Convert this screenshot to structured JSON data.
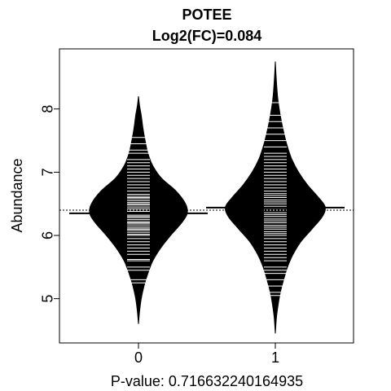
{
  "chart_data": {
    "type": "beanplot",
    "title": "POTEE",
    "subtitle": "Log2(FC)=0.084",
    "xlabel": "P-value: 0.716632240164935",
    "ylabel": "Abundance",
    "categories": [
      "0",
      "1"
    ],
    "y_ticks": [
      5,
      6,
      7,
      8
    ],
    "ylim": [
      4.3,
      8.95
    ],
    "overall_mean": 6.4,
    "groups": [
      {
        "name": "0",
        "mean": 6.35,
        "min": 4.6,
        "max": 8.2,
        "density": [
          [
            4.6,
            0.0
          ],
          [
            4.8,
            0.02
          ],
          [
            5.0,
            0.05
          ],
          [
            5.2,
            0.1
          ],
          [
            5.4,
            0.17
          ],
          [
            5.6,
            0.26
          ],
          [
            5.8,
            0.4
          ],
          [
            6.0,
            0.58
          ],
          [
            6.2,
            0.78
          ],
          [
            6.35,
            0.88
          ],
          [
            6.5,
            0.85
          ],
          [
            6.7,
            0.68
          ],
          [
            6.9,
            0.42
          ],
          [
            7.1,
            0.26
          ],
          [
            7.3,
            0.17
          ],
          [
            7.5,
            0.12
          ],
          [
            7.7,
            0.08
          ],
          [
            7.9,
            0.05
          ],
          [
            8.05,
            0.02
          ],
          [
            8.2,
            0.0
          ]
        ],
        "observations": [
          5.25,
          5.3,
          5.45,
          5.5,
          5.6,
          5.62,
          5.7,
          5.75,
          5.8,
          5.85,
          5.9,
          5.95,
          6.0,
          6.02,
          6.05,
          6.08,
          6.1,
          6.12,
          6.15,
          6.18,
          6.2,
          6.22,
          6.25,
          6.28,
          6.3,
          6.32,
          6.35,
          6.38,
          6.4,
          6.42,
          6.45,
          6.48,
          6.5,
          6.52,
          6.55,
          6.58,
          6.6,
          6.62,
          6.65,
          6.7,
          6.75,
          6.8,
          6.85,
          6.9,
          6.95,
          7.0,
          7.05,
          7.1,
          7.15,
          7.2,
          7.3,
          7.35,
          7.45,
          7.55
        ]
      },
      {
        "name": "1",
        "mean": 6.44,
        "min": 4.45,
        "max": 8.75,
        "density": [
          [
            4.45,
            0.0
          ],
          [
            4.7,
            0.02
          ],
          [
            4.9,
            0.05
          ],
          [
            5.1,
            0.09
          ],
          [
            5.3,
            0.15
          ],
          [
            5.5,
            0.22
          ],
          [
            5.7,
            0.32
          ],
          [
            5.9,
            0.46
          ],
          [
            6.1,
            0.66
          ],
          [
            6.3,
            0.85
          ],
          [
            6.45,
            0.9
          ],
          [
            6.6,
            0.78
          ],
          [
            6.8,
            0.58
          ],
          [
            7.0,
            0.42
          ],
          [
            7.2,
            0.3
          ],
          [
            7.4,
            0.22
          ],
          [
            7.6,
            0.16
          ],
          [
            7.8,
            0.11
          ],
          [
            8.0,
            0.07
          ],
          [
            8.2,
            0.04
          ],
          [
            8.5,
            0.015
          ],
          [
            8.75,
            0.0
          ]
        ],
        "observations": [
          5.05,
          5.1,
          5.2,
          5.3,
          5.4,
          5.45,
          5.5,
          5.6,
          5.65,
          5.7,
          5.75,
          5.8,
          5.85,
          5.9,
          5.95,
          6.0,
          6.03,
          6.06,
          6.1,
          6.13,
          6.16,
          6.2,
          6.23,
          6.26,
          6.3,
          6.33,
          6.36,
          6.4,
          6.43,
          6.46,
          6.5,
          6.53,
          6.56,
          6.6,
          6.63,
          6.66,
          6.7,
          6.75,
          6.8,
          6.85,
          6.9,
          6.95,
          7.0,
          7.05,
          7.1,
          7.15,
          7.2,
          7.25,
          7.3,
          7.4,
          7.5,
          7.6,
          7.7,
          7.8,
          7.9,
          8.1
        ]
      }
    ],
    "colors": {
      "bean": "#000000",
      "observation_line": "#ffffff",
      "axis": "#000000",
      "background": "#ffffff"
    }
  }
}
